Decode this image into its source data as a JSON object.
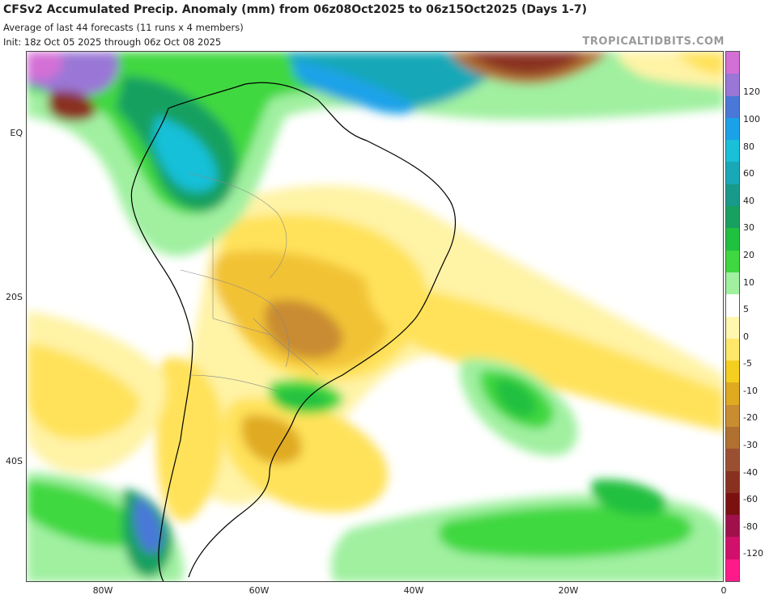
{
  "header": {
    "title": "CFSv2 Accumulated Precip. Anomaly (mm) from 06z08Oct2025 to 06z15Oct2025 (Days 1-7)",
    "subtitle1": "Average of last 44 forecasts (11 runs x 4 members)",
    "subtitle2": "Init: 18z Oct 05 2025 through 06z Oct 08 2025",
    "brand": "TROPICALTIDBITS.COM"
  },
  "axes": {
    "lat_labels": [
      "EQ",
      "20S",
      "40S"
    ],
    "lon_labels": [
      "80W",
      "60W",
      "40W",
      "20W",
      "0"
    ]
  },
  "colorbar": {
    "labels": [
      "120",
      "100",
      "80",
      "60",
      "40",
      "30",
      "20",
      "10",
      "5",
      "0",
      "-5",
      "-10",
      "-20",
      "-30",
      "-40",
      "-60",
      "-80",
      "-120"
    ],
    "colors": [
      "#d46fd6",
      "#9a77d6",
      "#4a78d8",
      "#1aa2e8",
      "#19c0d8",
      "#18a8b8",
      "#189a8a",
      "#18a060",
      "#20c040",
      "#40d840",
      "#a0f0a0",
      "#ffffff",
      "#fff6b0",
      "#ffe76a",
      "#f5cf20",
      "#e0aa20",
      "#c98c30",
      "#b07030",
      "#9a5030",
      "#8a3020",
      "#7a1010",
      "#a0104a",
      "#d0106a",
      "#ff1a8a"
    ],
    "top_color": "#c45ec8",
    "bottom_color": "#ff2a9a"
  }
}
